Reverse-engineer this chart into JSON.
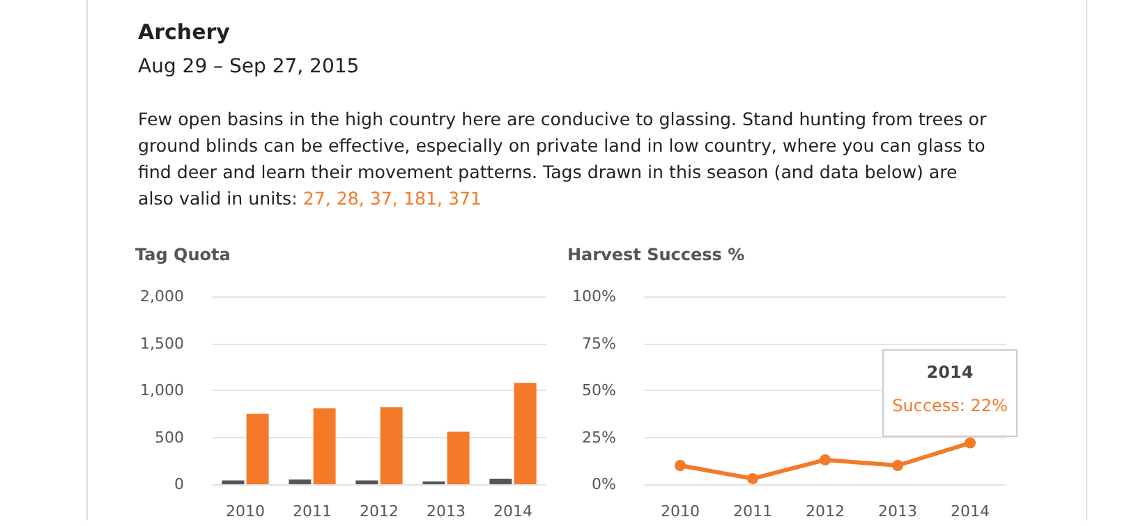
{
  "chart_data": [
    {
      "type": "other",
      "title": "Archery",
      "subtitle": "Aug 29 – Sep 27, 2015",
      "annotations": [
        "Few open basins in the high country here are conducive to glassing. Stand hunting from trees or ground blinds can be effective, especially on private land in low country, where you can glass to find deer and learn their movement patterns. Tags drawn in this season (and data below) are also valid in units:",
        "27, 28, 37, 181, 371"
      ]
    },
    {
      "type": "bar",
      "title": "Tag Quota",
      "categories": [
        "2010",
        "2011",
        "2012",
        "2013",
        "2014"
      ],
      "series": [
        {
          "color": "#555555",
          "values": [
            40,
            50,
            40,
            30,
            60
          ]
        },
        {
          "color": "#f47a2a",
          "values": [
            750,
            810,
            820,
            560,
            1080
          ]
        }
      ],
      "ylim": [
        0,
        2000
      ],
      "yticks": [
        0,
        {
          "value": 500,
          "label": "500"
        },
        {
          "value": 1000,
          "label": "1,000"
        },
        {
          "value": 1500,
          "label": "1,500"
        },
        {
          "value": 2000,
          "label": "2,000"
        }
      ],
      "grid": "y"
    },
    {
      "type": "line",
      "title": "Harvest Success %",
      "categories": [
        "2010",
        "2011",
        "2012",
        "2013",
        "2014"
      ],
      "series": [
        {
          "color": "#f47a2a",
          "values": [
            10,
            3,
            13,
            10,
            22
          ]
        }
      ],
      "ylim": [
        0,
        100
      ],
      "yticks": [
        {
          "value": 0,
          "label": "0%"
        },
        {
          "value": 25,
          "label": "25%"
        },
        {
          "value": 50,
          "label": "50%"
        },
        {
          "value": 75,
          "label": "75%"
        },
        {
          "value": 100,
          "label": "100%"
        }
      ],
      "grid": "y",
      "marker": "circle",
      "annotations": [
        "2014",
        "Success: 22%"
      ]
    }
  ]
}
